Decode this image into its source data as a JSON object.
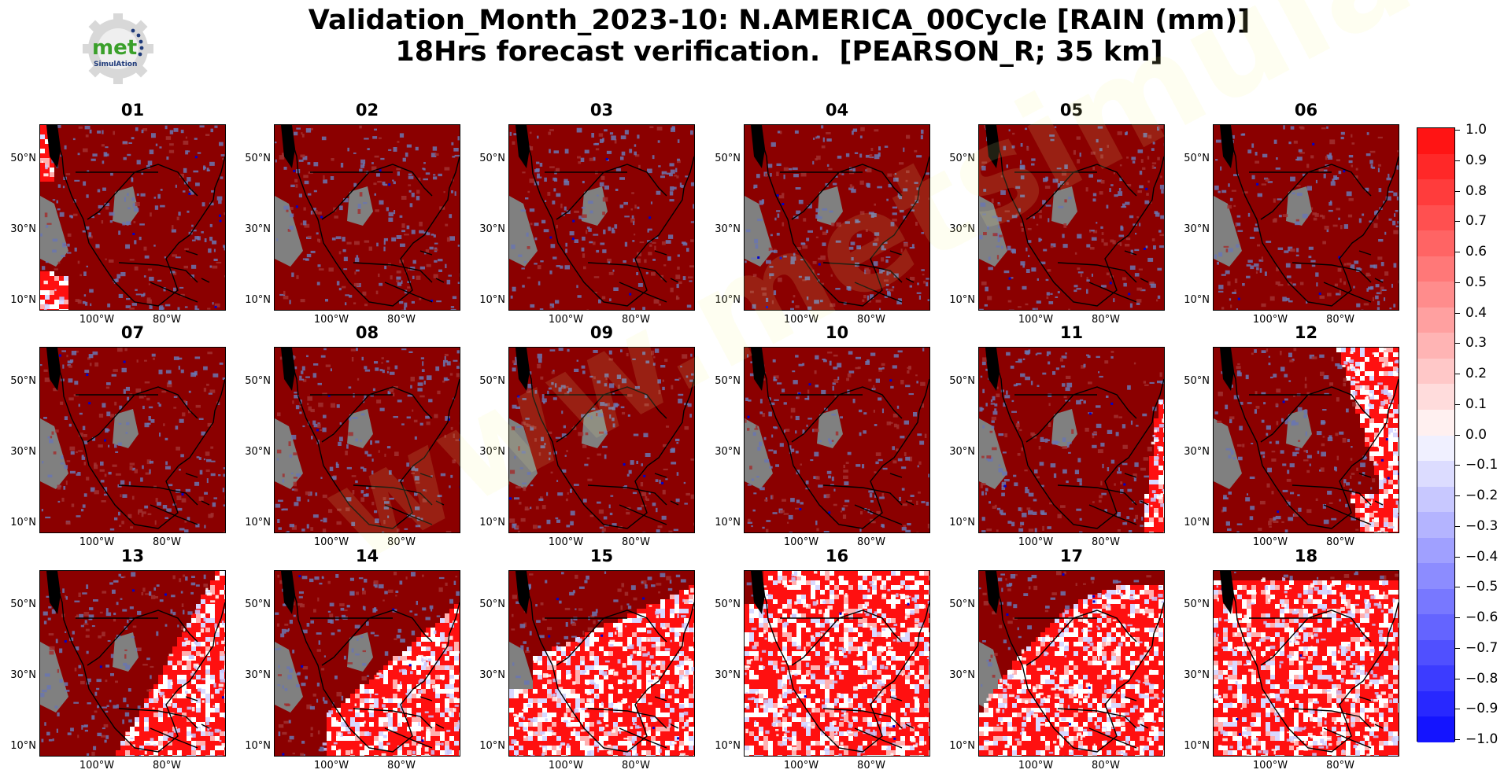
{
  "title": {
    "line1": "Validation_Month_2023-10: N.AMERICA_00Cycle [RAIN (mm)]",
    "line2": "18Hrs forecast verification.  [PEARSON_R; 35 km]"
  },
  "logo": {
    "text": "met",
    "subtext": "SimulAtion",
    "icon": "gear-logo-icon"
  },
  "watermark": "www.metsimulation.com",
  "axes": {
    "lat_labels": [
      "50°N",
      "30°N",
      "10°N"
    ],
    "lon_labels": [
      "100°W",
      "80°W"
    ]
  },
  "panels": [
    {
      "label": "01",
      "white_region": "west-edge"
    },
    {
      "label": "02",
      "white_region": "none"
    },
    {
      "label": "03",
      "white_region": "none"
    },
    {
      "label": "04",
      "white_region": "none"
    },
    {
      "label": "05",
      "white_region": "none"
    },
    {
      "label": "06",
      "white_region": "none"
    },
    {
      "label": "07",
      "white_region": "none"
    },
    {
      "label": "08",
      "white_region": "none"
    },
    {
      "label": "09",
      "white_region": "none"
    },
    {
      "label": "10",
      "white_region": "none"
    },
    {
      "label": "11",
      "white_region": "east-sliver"
    },
    {
      "label": "12",
      "white_region": "east-wedge"
    },
    {
      "label": "13",
      "white_region": "east-half"
    },
    {
      "label": "14",
      "white_region": "southeast-large"
    },
    {
      "label": "15",
      "white_region": "most"
    },
    {
      "label": "16",
      "white_region": "most-arc"
    },
    {
      "label": "17",
      "white_region": "nearly-all"
    },
    {
      "label": "18",
      "white_region": "all"
    }
  ],
  "colorbar": {
    "ticks": [
      "1.0",
      "0.9",
      "0.8",
      "0.7",
      "0.6",
      "0.5",
      "0.4",
      "0.3",
      "0.2",
      "0.1",
      "0.0",
      "−0.1",
      "−0.2",
      "−0.3",
      "−0.4",
      "−0.5",
      "−0.6",
      "−0.7",
      "−0.8",
      "−0.9",
      "−1.0"
    ],
    "colors": [
      "#ff1414",
      "#ff2828",
      "#ff3c3c",
      "#ff5050",
      "#ff6464",
      "#ff7878",
      "#ff8c8c",
      "#ffa0a0",
      "#ffb4b4",
      "#ffc8c8",
      "#ffdcdc",
      "#fff0f0",
      "#f0f0ff",
      "#dcdcff",
      "#c8c8ff",
      "#b4b4ff",
      "#a0a0ff",
      "#8c8cff",
      "#7878ff",
      "#6464ff",
      "#5050ff",
      "#3c3cff",
      "#2828ff",
      "#1414ff"
    ]
  },
  "colors": {
    "dark_red": "#8b0000",
    "bright_red": "#ff1010",
    "grey": "#808080",
    "slate_blue": "#6a75b0",
    "blue": "#0000cc"
  }
}
